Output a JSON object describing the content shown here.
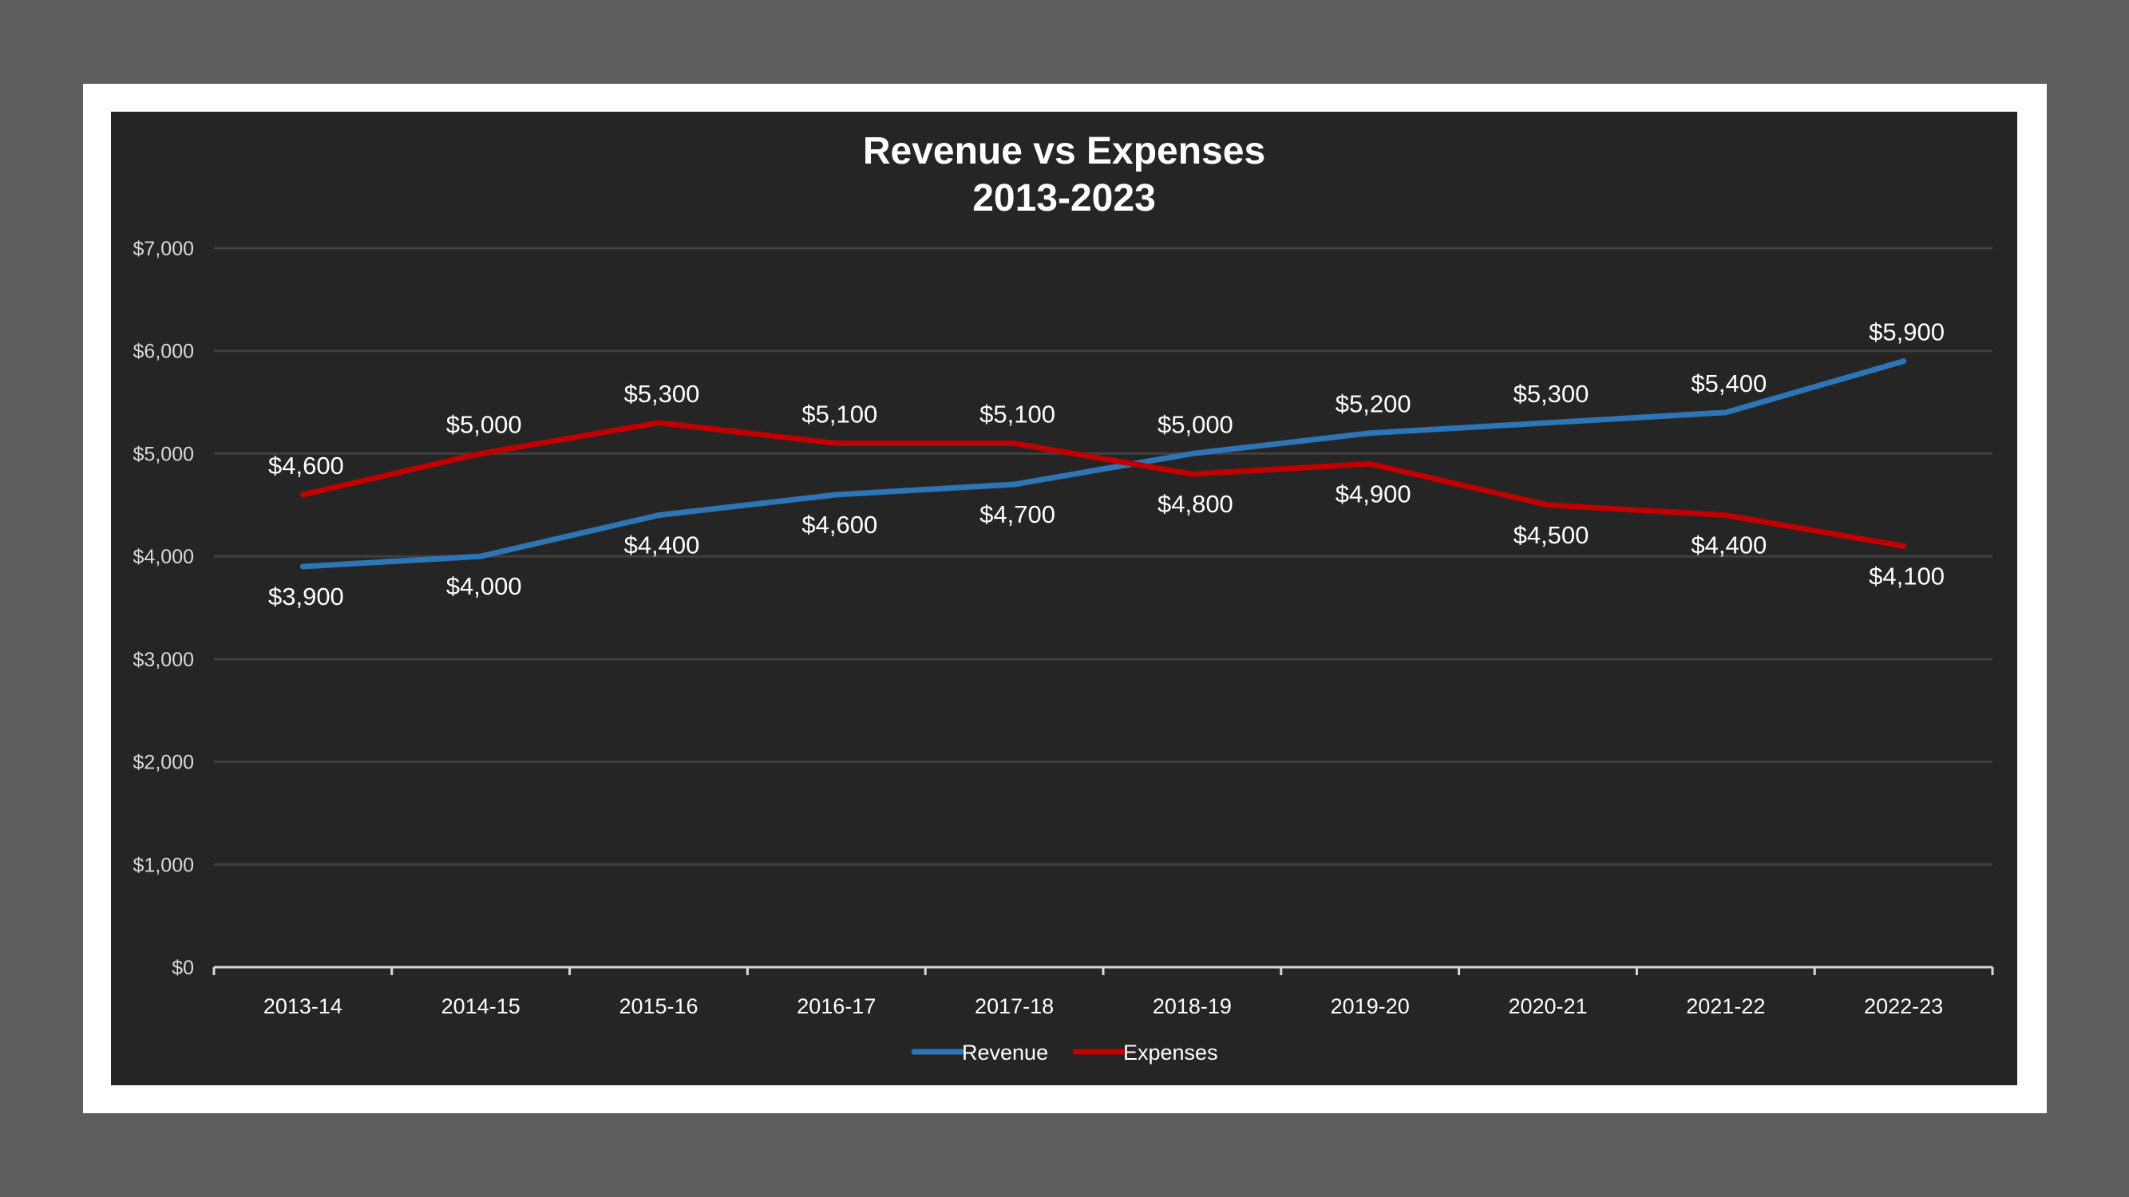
{
  "chart_data": {
    "type": "line",
    "title": "Revenue vs Expenses",
    "subtitle": "2013-2023",
    "categories": [
      "2013-14",
      "2014-15",
      "2015-16",
      "2016-17",
      "2017-18",
      "2018-19",
      "2019-20",
      "2020-21",
      "2021-22",
      "2022-23"
    ],
    "series": [
      {
        "name": "Revenue",
        "color": "#2e75b6",
        "values": [
          3900,
          4000,
          4400,
          4600,
          4700,
          5000,
          5200,
          5300,
          5400,
          5900
        ]
      },
      {
        "name": "Expenses",
        "color": "#c00000",
        "values": [
          4600,
          5000,
          5300,
          5100,
          5100,
          4800,
          4900,
          4500,
          4400,
          4100
        ]
      }
    ],
    "ylim": [
      0,
      7000
    ],
    "yticks": [
      0,
      1000,
      2000,
      3000,
      4000,
      5000,
      6000,
      7000
    ],
    "ytick_labels": [
      "$0",
      "$1,000",
      "$2,000",
      "$3,000",
      "$4,000",
      "$5,000",
      "$6,000",
      "$7,000"
    ],
    "revenue_labels": [
      "$3,900",
      "$4,000",
      "$4,400",
      "$4,600",
      "$4,700",
      "$5,000",
      "$5,200",
      "$5,300",
      "$5,400",
      "$5,900"
    ],
    "expense_labels": [
      "$4,600",
      "$5,000",
      "$5,300",
      "$5,100",
      "$5,100",
      "$4,800",
      "$4,900",
      "$4,500",
      "$4,400",
      "$4,100"
    ],
    "grid": true,
    "legend": "bottom",
    "background": "#252525",
    "gridline_color": "#404040"
  }
}
